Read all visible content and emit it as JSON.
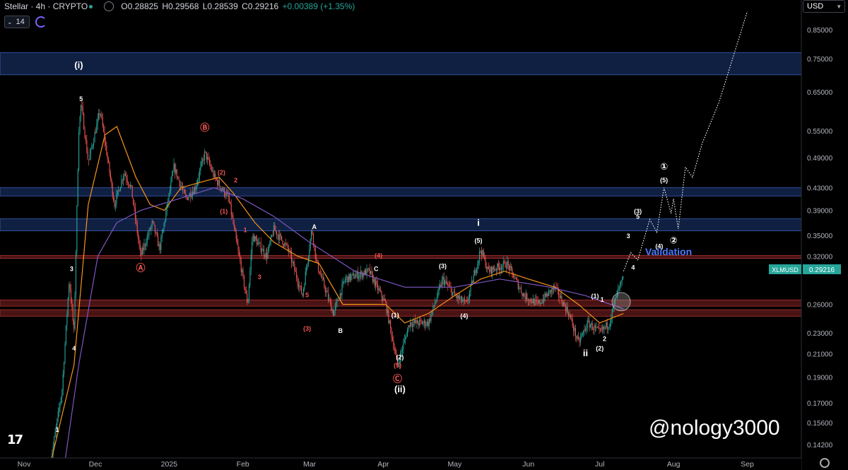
{
  "header": {
    "symbol": "Stellar · 4h · CRYPTO",
    "open": "O0.28825",
    "high": "H0.29568",
    "low": "L0.28539",
    "close": "C0.29216",
    "change": "+0.00389 (+1.35%)",
    "interval_count": "14",
    "currency": "USD"
  },
  "watermark": "@nology3000",
  "validation_label": "Validation",
  "colors": {
    "background": "#000000",
    "up": "#26a69a",
    "down": "#ef5350",
    "ma_orange": "#f7931a",
    "ma_purple": "#7e57c2",
    "zone_blue": "#1e3a78",
    "zone_red": "#7a1f1f",
    "wave_red": "#ef5350",
    "wave_white": "#ffffff",
    "validation": "#4a7bff"
  },
  "chart_data": {
    "type": "candlestick",
    "price_scale": "log",
    "ylim": [
      0.13,
      0.92
    ],
    "y_ticks": [
      0.85,
      0.75,
      0.65,
      0.55,
      0.49,
      0.43,
      0.39,
      0.35,
      0.32,
      0.26,
      0.23,
      0.21,
      0.19,
      0.17,
      0.156,
      0.142
    ],
    "y_tick_labels": [
      "0.85000",
      "0.75000",
      "0.65000",
      "0.55000",
      "0.49000",
      "0.43000",
      "0.39000",
      "0.35000",
      "0.32000",
      "0.26000",
      "0.23000",
      "0.21000",
      "0.19000",
      "0.17000",
      "0.15600",
      "0.14200"
    ],
    "x_labels": [
      "Nov",
      "Dec",
      "2025",
      "Feb",
      "Mar",
      "Apr",
      "May",
      "Jun",
      "Jul",
      "Aug",
      "Sep"
    ],
    "last_price_label": "XLMUSD",
    "last_price": "0.29216",
    "price_path": [
      [
        "2024-11-12",
        0.13
      ],
      [
        "2024-11-17",
        0.18
      ],
      [
        "2024-11-20",
        0.29
      ],
      [
        "2024-11-22",
        0.23
      ],
      [
        "2024-11-24",
        0.55
      ],
      [
        "2024-11-25",
        0.62
      ],
      [
        "2024-11-28",
        0.48
      ],
      [
        "2024-12-03",
        0.6
      ],
      [
        "2024-12-09",
        0.4
      ],
      [
        "2024-12-13",
        0.46
      ],
      [
        "2024-12-16",
        0.43
      ],
      [
        "2024-12-20",
        0.32
      ],
      [
        "2024-12-25",
        0.37
      ],
      [
        "2024-12-28",
        0.33
      ],
      [
        "2025-01-03",
        0.47
      ],
      [
        "2025-01-08",
        0.41
      ],
      [
        "2025-01-12",
        0.43
      ],
      [
        "2025-01-16",
        0.5
      ],
      [
        "2025-01-20",
        0.45
      ],
      [
        "2025-01-26",
        0.41
      ],
      [
        "2025-02-03",
        0.26
      ],
      [
        "2025-02-05",
        0.35
      ],
      [
        "2025-02-11",
        0.32
      ],
      [
        "2025-02-14",
        0.36
      ],
      [
        "2025-02-20",
        0.33
      ],
      [
        "2025-02-26",
        0.27
      ],
      [
        "2025-03-02",
        0.36
      ],
      [
        "2025-03-04",
        0.31
      ],
      [
        "2025-03-11",
        0.25
      ],
      [
        "2025-03-16",
        0.29
      ],
      [
        "2025-03-26",
        0.3
      ],
      [
        "2025-04-02",
        0.26
      ],
      [
        "2025-04-07",
        0.2
      ],
      [
        "2025-04-12",
        0.24
      ],
      [
        "2025-04-20",
        0.24
      ],
      [
        "2025-04-26",
        0.29
      ],
      [
        "2025-05-01",
        0.27
      ],
      [
        "2025-05-06",
        0.26
      ],
      [
        "2025-05-12",
        0.33
      ],
      [
        "2025-05-15",
        0.3
      ],
      [
        "2025-05-23",
        0.31
      ],
      [
        "2025-05-30",
        0.27
      ],
      [
        "2025-06-05",
        0.26
      ],
      [
        "2025-06-12",
        0.28
      ],
      [
        "2025-06-18",
        0.25
      ],
      [
        "2025-06-22",
        0.22
      ],
      [
        "2025-06-26",
        0.24
      ],
      [
        "2025-07-01",
        0.23
      ],
      [
        "2025-07-05",
        0.24
      ],
      [
        "2025-07-08",
        0.27
      ],
      [
        "2025-07-11",
        0.29216
      ]
    ],
    "ma_orange": [
      [
        "2024-11-12",
        0.13
      ],
      [
        "2024-11-22",
        0.2
      ],
      [
        "2024-11-28",
        0.4
      ],
      [
        "2024-12-05",
        0.54
      ],
      [
        "2024-12-10",
        0.56
      ],
      [
        "2024-12-18",
        0.45
      ],
      [
        "2024-12-24",
        0.4
      ],
      [
        "2024-12-30",
        0.39
      ],
      [
        "2025-01-06",
        0.43
      ],
      [
        "2025-01-14",
        0.44
      ],
      [
        "2025-01-22",
        0.45
      ],
      [
        "2025-01-28",
        0.42
      ],
      [
        "2025-02-06",
        0.37
      ],
      [
        "2025-02-14",
        0.34
      ],
      [
        "2025-02-24",
        0.32
      ],
      [
        "2025-03-05",
        0.31
      ],
      [
        "2025-03-15",
        0.26
      ],
      [
        "2025-03-25",
        0.26
      ],
      [
        "2025-04-02",
        0.26
      ],
      [
        "2025-04-10",
        0.24
      ],
      [
        "2025-04-20",
        0.25
      ],
      [
        "2025-05-01",
        0.27
      ],
      [
        "2025-05-12",
        0.29
      ],
      [
        "2025-05-22",
        0.3
      ],
      [
        "2025-06-01",
        0.29
      ],
      [
        "2025-06-12",
        0.28
      ],
      [
        "2025-06-22",
        0.26
      ],
      [
        "2025-07-01",
        0.24
      ],
      [
        "2025-07-11",
        0.25
      ]
    ],
    "ma_purple": [
      [
        "2024-11-18",
        0.13
      ],
      [
        "2024-11-24",
        0.2
      ],
      [
        "2024-12-02",
        0.32
      ],
      [
        "2024-12-10",
        0.37
      ],
      [
        "2024-12-20",
        0.39
      ],
      [
        "2025-01-05",
        0.41
      ],
      [
        "2025-01-20",
        0.43
      ],
      [
        "2025-02-01",
        0.41
      ],
      [
        "2025-02-14",
        0.38
      ],
      [
        "2025-03-01",
        0.34
      ],
      [
        "2025-03-20",
        0.3
      ],
      [
        "2025-04-10",
        0.28
      ],
      [
        "2025-05-01",
        0.28
      ],
      [
        "2025-05-20",
        0.29
      ],
      [
        "2025-06-10",
        0.28
      ],
      [
        "2025-06-25",
        0.27
      ],
      [
        "2025-07-11",
        0.255
      ]
    ],
    "zones": [
      {
        "color": "blue",
        "from": 0.7,
        "to": 0.77
      },
      {
        "color": "blue",
        "from": 0.415,
        "to": 0.43
      },
      {
        "color": "blue",
        "from": 0.357,
        "to": 0.376
      },
      {
        "color": "red",
        "from": 0.317,
        "to": 0.321
      },
      {
        "color": "red",
        "from": 0.258,
        "to": 0.265
      },
      {
        "color": "red",
        "from": 0.247,
        "to": 0.254
      }
    ],
    "projection": [
      [
        "2025-07-11",
        0.3
      ],
      [
        "2025-07-14",
        0.325
      ],
      [
        "2025-07-17",
        0.315
      ],
      [
        "2025-07-22",
        0.375
      ],
      [
        "2025-07-25",
        0.355
      ],
      [
        "2025-07-28",
        0.43
      ],
      [
        "2025-07-31",
        0.385
      ],
      [
        "2025-08-01",
        0.41
      ],
      [
        "2025-08-03",
        0.36
      ],
      [
        "2025-08-06",
        0.47
      ],
      [
        "2025-08-09",
        0.45
      ],
      [
        "2025-08-13",
        0.52
      ],
      [
        "2025-08-20",
        0.62
      ],
      [
        "2025-09-01",
        0.92
      ]
    ],
    "wave_labels": [
      {
        "text": "(i)",
        "date": "2024-11-24",
        "price": 0.72,
        "color": "white",
        "size": "large"
      },
      {
        "text": "5",
        "date": "2024-11-25",
        "price": 0.625,
        "color": "white",
        "size": "small"
      },
      {
        "text": "3",
        "date": "2024-11-21",
        "price": 0.3,
        "color": "white",
        "size": "small"
      },
      {
        "text": "4",
        "date": "2024-11-22",
        "price": 0.213,
        "color": "white",
        "size": "small"
      },
      {
        "text": "1",
        "date": "2024-11-15",
        "price": 0.15,
        "color": "white",
        "size": "small"
      },
      {
        "text": "Ⓑ",
        "date": "2025-01-16",
        "price": 0.55,
        "color": "red",
        "size": "medium"
      },
      {
        "text": "Ⓐ",
        "date": "2024-12-20",
        "price": 0.3,
        "color": "red",
        "size": "medium"
      },
      {
        "text": "(2)",
        "date": "2025-01-23",
        "price": 0.455,
        "color": "red",
        "size": "small"
      },
      {
        "text": "2",
        "date": "2025-01-29",
        "price": 0.44,
        "color": "red",
        "size": "small"
      },
      {
        "text": "(1)",
        "date": "2025-01-24",
        "price": 0.385,
        "color": "red",
        "size": "small"
      },
      {
        "text": "1",
        "date": "2025-02-02",
        "price": 0.355,
        "color": "red",
        "size": "small"
      },
      {
        "text": "3",
        "date": "2025-02-08",
        "price": 0.29,
        "color": "red",
        "size": "small"
      },
      {
        "text": "5",
        "date": "2025-02-28",
        "price": 0.268,
        "color": "red",
        "size": "small"
      },
      {
        "text": "(3)",
        "date": "2025-02-28",
        "price": 0.232,
        "color": "red",
        "size": "small"
      },
      {
        "text": "A",
        "date": "2025-03-03",
        "price": 0.36,
        "color": "white",
        "size": "small"
      },
      {
        "text": "B",
        "date": "2025-03-14",
        "price": 0.23,
        "color": "white",
        "size": "small"
      },
      {
        "text": "C",
        "date": "2025-03-29",
        "price": 0.3,
        "color": "white",
        "size": "small"
      },
      {
        "text": "(4)",
        "date": "2025-03-30",
        "price": 0.318,
        "color": "red",
        "size": "small"
      },
      {
        "text": "(1)",
        "date": "2025-04-06",
        "price": 0.246,
        "color": "white",
        "size": "small"
      },
      {
        "text": "(2)",
        "date": "2025-04-08",
        "price": 0.205,
        "color": "white",
        "size": "small"
      },
      {
        "text": "(5)",
        "date": "2025-04-07",
        "price": 0.198,
        "color": "red",
        "size": "small"
      },
      {
        "text": "Ⓒ",
        "date": "2025-04-07",
        "price": 0.186,
        "color": "red",
        "size": "medium"
      },
      {
        "text": "(ii)",
        "date": "2025-04-08",
        "price": 0.178,
        "color": "white",
        "size": "large"
      },
      {
        "text": "(3)",
        "date": "2025-04-26",
        "price": 0.304,
        "color": "white",
        "size": "small"
      },
      {
        "text": "(4)",
        "date": "2025-05-05",
        "price": 0.245,
        "color": "white",
        "size": "small"
      },
      {
        "text": "(5)",
        "date": "2025-05-11",
        "price": 0.339,
        "color": "white",
        "size": "small"
      },
      {
        "text": "i",
        "date": "2025-05-11",
        "price": 0.365,
        "color": "white",
        "size": "large"
      },
      {
        "text": "ii",
        "date": "2025-06-25",
        "price": 0.208,
        "color": "white",
        "size": "large"
      },
      {
        "text": "(1)",
        "date": "2025-06-29",
        "price": 0.267,
        "color": "white",
        "size": "small"
      },
      {
        "text": "(2)",
        "date": "2025-07-01",
        "price": 0.213,
        "color": "white",
        "size": "small"
      },
      {
        "text": "1",
        "date": "2025-07-02",
        "price": 0.263,
        "color": "white",
        "size": "small"
      },
      {
        "text": "2",
        "date": "2025-07-03",
        "price": 0.222,
        "color": "white",
        "size": "small"
      },
      {
        "text": "3",
        "date": "2025-07-13",
        "price": 0.346,
        "color": "white",
        "size": "small"
      },
      {
        "text": "4",
        "date": "2025-07-15",
        "price": 0.302,
        "color": "white",
        "size": "small"
      },
      {
        "text": "(3)",
        "date": "2025-07-17",
        "price": 0.385,
        "color": "white",
        "size": "small"
      },
      {
        "text": "5",
        "date": "2025-07-17",
        "price": 0.376,
        "color": "white",
        "size": "small"
      },
      {
        "text": "(4)",
        "date": "2025-07-26",
        "price": 0.331,
        "color": "white",
        "size": "small"
      },
      {
        "text": "(5)",
        "date": "2025-07-28",
        "price": 0.44,
        "color": "white",
        "size": "small"
      },
      {
        "text": "①",
        "date": "2025-07-28",
        "price": 0.465,
        "color": "white",
        "size": "medium"
      },
      {
        "text": "②",
        "date": "2025-08-01",
        "price": 0.338,
        "color": "white",
        "size": "medium"
      }
    ],
    "highlight_circle": {
      "date": "2025-07-10",
      "price": 0.263
    }
  }
}
